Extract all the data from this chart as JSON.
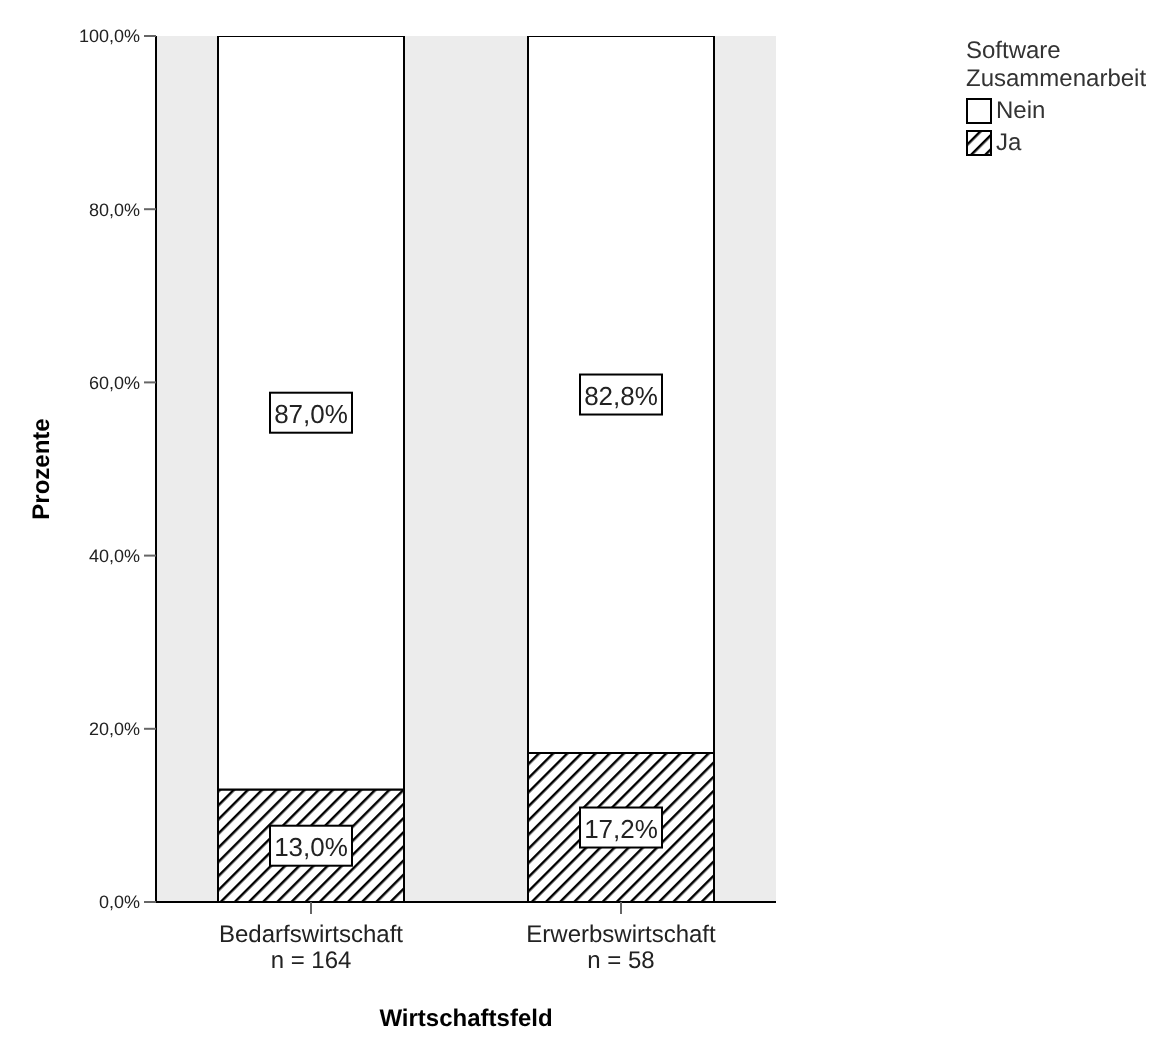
{
  "chart_data": {
    "type": "bar",
    "stacked": true,
    "xlabel": "Wirtschaftsfeld",
    "ylabel": "Prozente",
    "legend_title": "Software\nZusammenarbeit",
    "legend": "top right",
    "categories": [
      "Bedarfswirtschaft\nn = 164",
      "Erwerbswirtschaft\nn = 58"
    ],
    "series": [
      {
        "name": "Ja",
        "color": "#000000",
        "values": [
          13.0,
          17.2
        ],
        "value_labels": [
          "13,0%",
          "17,2%"
        ]
      },
      {
        "name": "Nein",
        "color": "#ffffff",
        "values": [
          87.0,
          82.8
        ],
        "value_labels": [
          "87,0%",
          "82,8%"
        ]
      }
    ],
    "ylim": [
      0,
      100
    ],
    "yticks": [
      {
        "value": 0,
        "label": "0,0%"
      },
      {
        "value": 20,
        "label": "20,0%"
      },
      {
        "value": 40,
        "label": "40,0%"
      },
      {
        "value": 60,
        "label": "60,0%"
      },
      {
        "value": 80,
        "label": "80,0%"
      },
      {
        "value": 100,
        "label": "100,0%"
      }
    ]
  }
}
